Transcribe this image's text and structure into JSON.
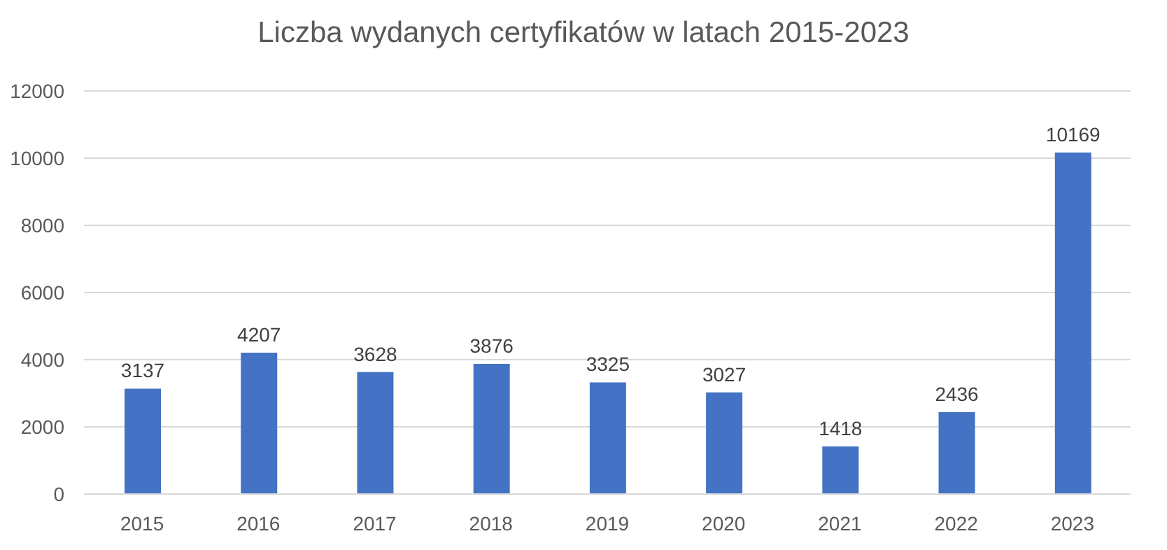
{
  "chart_data": {
    "type": "bar",
    "title": "Liczba wydanych certyfikatów w latach 2015-2023",
    "categories": [
      "2015",
      "2016",
      "2017",
      "2018",
      "2019",
      "2020",
      "2021",
      "2022",
      "2023"
    ],
    "values": [
      3137,
      4207,
      3628,
      3876,
      3325,
      3027,
      1418,
      2436,
      10169
    ],
    "color": "#4472c4",
    "ylim": [
      0,
      12000
    ],
    "yticks": [
      0,
      2000,
      4000,
      6000,
      8000,
      10000,
      12000
    ],
    "grid": "y",
    "data_labels": true,
    "legend": false
  }
}
